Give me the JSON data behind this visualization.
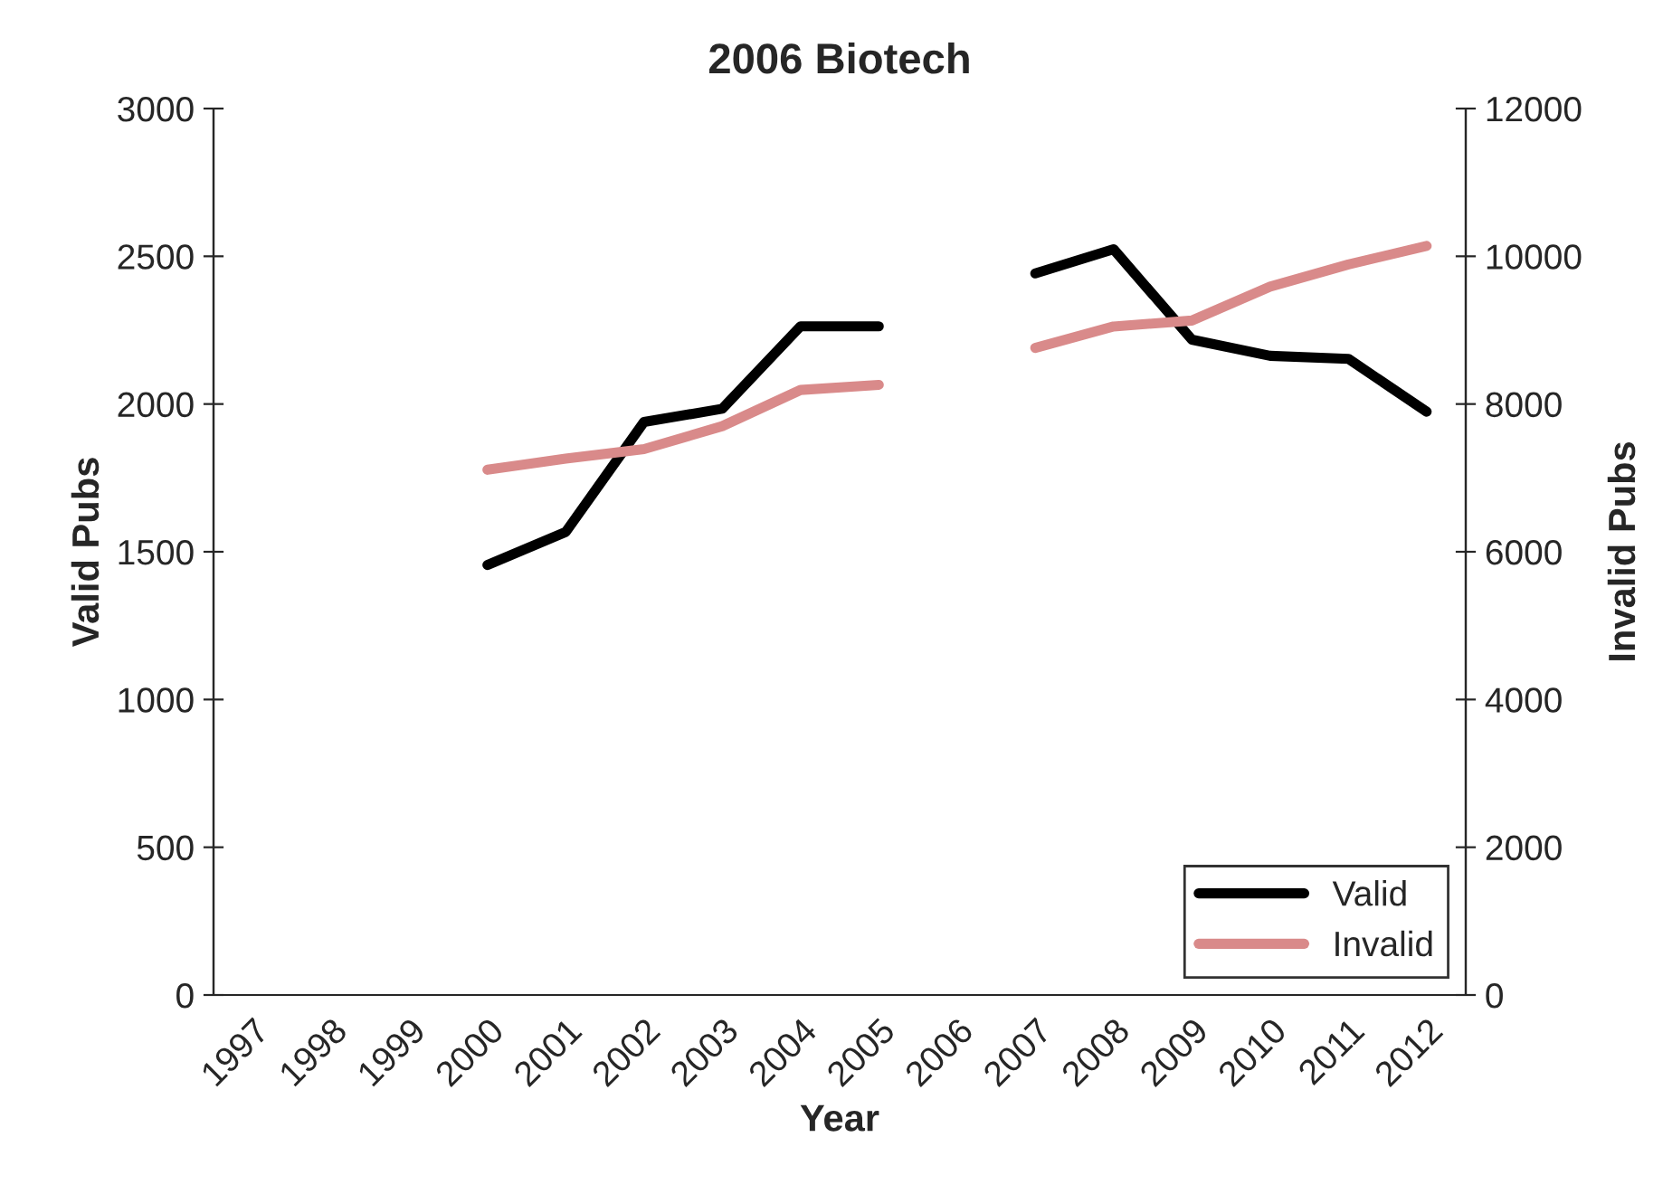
{
  "chart_data": {
    "type": "line",
    "title": "2006 Biotech",
    "xlabel": "Year",
    "ylabel": "Valid Pubs",
    "y2label": "Invalid Pubs",
    "categories": [
      "1997",
      "1998",
      "1999",
      "2000",
      "2001",
      "2002",
      "2003",
      "2004",
      "2005",
      "2006",
      "2007",
      "2008",
      "2009",
      "2010",
      "2011",
      "2012"
    ],
    "series": [
      {
        "name": "Valid",
        "color": "#000000",
        "values": [
          null,
          null,
          null,
          1455,
          1567,
          1939,
          1984,
          2263,
          2263,
          null,
          2442,
          2524,
          2218,
          2163,
          2153,
          1974
        ]
      },
      {
        "name": "Invalid",
        "color": "#d98a8a",
        "axis": "y2",
        "values": [
          null,
          null,
          null,
          7110,
          7260,
          7390,
          7700,
          8190,
          8260,
          null,
          8760,
          9050,
          9130,
          9590,
          9890,
          10140
        ]
      }
    ],
    "ylim": [
      0,
      3000
    ],
    "yticks": [
      0,
      500,
      1000,
      1500,
      2000,
      2500,
      3000
    ],
    "y2lim": [
      0,
      12000
    ],
    "y2ticks": [
      0,
      2000,
      4000,
      6000,
      8000,
      10000,
      12000
    ],
    "grid": false,
    "legend": "bottom right",
    "marker": "none",
    "line_style": "solid"
  }
}
